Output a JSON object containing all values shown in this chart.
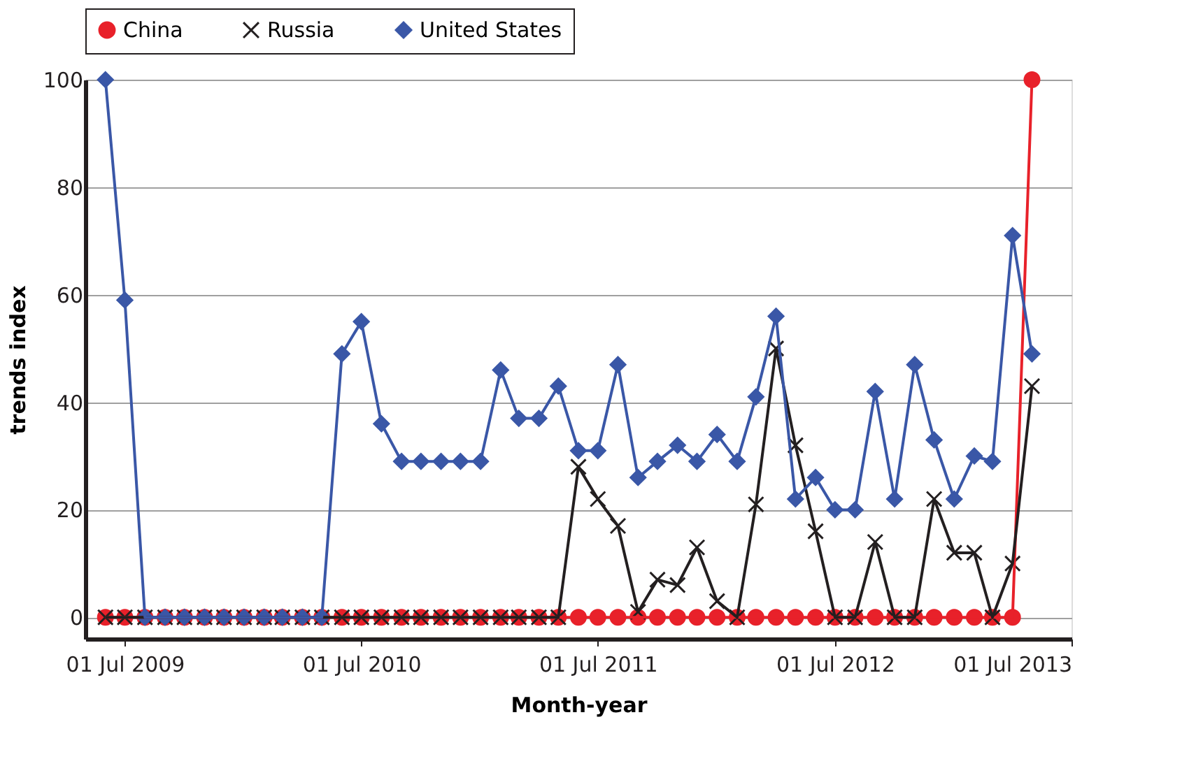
{
  "chart_data": {
    "type": "line",
    "xlabel": "Month-year",
    "ylabel": "trends index",
    "x": [
      "2009-06",
      "2009-07",
      "2009-08",
      "2009-09",
      "2009-10",
      "2009-11",
      "2009-12",
      "2010-01",
      "2010-02",
      "2010-03",
      "2010-04",
      "2010-05",
      "2010-06",
      "2010-07",
      "2010-08",
      "2010-09",
      "2010-10",
      "2010-11",
      "2010-12",
      "2011-01",
      "2011-02",
      "2011-03",
      "2011-04",
      "2011-05",
      "2011-06",
      "2011-07",
      "2011-08",
      "2011-09",
      "2011-10",
      "2011-11",
      "2011-12",
      "2012-01",
      "2012-02",
      "2012-03",
      "2012-04",
      "2012-05",
      "2012-06",
      "2012-07",
      "2012-08",
      "2012-09",
      "2012-10",
      "2012-11",
      "2012-12",
      "2013-01",
      "2013-02",
      "2013-03",
      "2013-04",
      "2013-05"
    ],
    "series": [
      {
        "name": "China",
        "color": "#e8212a",
        "marker": "circle",
        "values": [
          0,
          0,
          0,
          0,
          0,
          0,
          0,
          0,
          0,
          0,
          0,
          0,
          0,
          0,
          0,
          0,
          0,
          0,
          0,
          0,
          0,
          0,
          0,
          0,
          0,
          0,
          0,
          0,
          0,
          0,
          0,
          0,
          0,
          0,
          0,
          0,
          0,
          0,
          0,
          0,
          0,
          0,
          0,
          0,
          0,
          0,
          0,
          100
        ]
      },
      {
        "name": "Russia",
        "color": "#231f20",
        "marker": "cross",
        "values": [
          0,
          0,
          0,
          0,
          0,
          0,
          0,
          0,
          0,
          0,
          0,
          0,
          0,
          0,
          0,
          0,
          0,
          0,
          0,
          0,
          0,
          0,
          0,
          0,
          28,
          22,
          17,
          1,
          7,
          6,
          13,
          3,
          0,
          21,
          50,
          32,
          16,
          0,
          0,
          14,
          0,
          0,
          22,
          12,
          12,
          0,
          10,
          43
        ]
      },
      {
        "name": "United States",
        "color": "#3a57a7",
        "marker": "diamond",
        "values": [
          100,
          59,
          0,
          0,
          0,
          0,
          0,
          0,
          0,
          0,
          0,
          0,
          49,
          55,
          36,
          29,
          29,
          29,
          29,
          29,
          46,
          37,
          37,
          43,
          31,
          31,
          47,
          26,
          29,
          32,
          29,
          34,
          29,
          41,
          56,
          22,
          26,
          20,
          20,
          42,
          22,
          47,
          33,
          22,
          30,
          29,
          71,
          49
        ]
      }
    ],
    "xlim": [
      "2009-05-01",
      "2013-07-01"
    ],
    "xticks": [
      {
        "value": "2009-07-01",
        "label": "01 Jul 2009"
      },
      {
        "value": "2010-07-01",
        "label": "01 Jul 2010"
      },
      {
        "value": "2011-07-01",
        "label": "01 Jul 2011"
      },
      {
        "value": "2012-07-01",
        "label": "01 Jul 2012"
      },
      {
        "value": "2013-07-01",
        "label": "01 Jul 2013"
      }
    ],
    "ylim": [
      -4,
      100
    ],
    "yticks": [
      0,
      20,
      40,
      60,
      80,
      100
    ],
    "grid": "y",
    "legend": "top",
    "line_style": "solid"
  }
}
